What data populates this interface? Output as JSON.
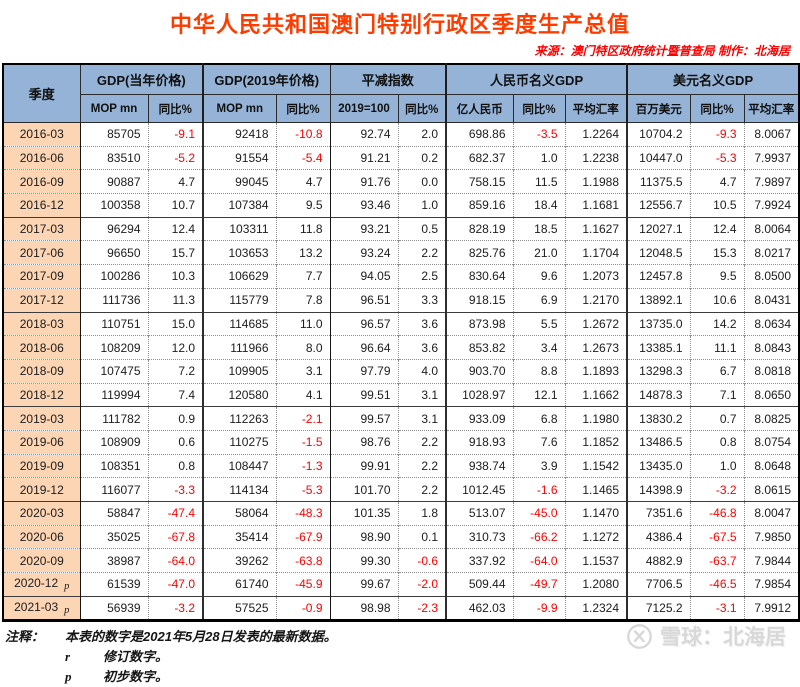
{
  "header": {
    "title": "中华人民共和国澳门特别行政区季度生产总值",
    "source_line": "来源：澳门特区政府统计暨普查局  制作：北海居"
  },
  "chart_data": {
    "type": "table",
    "title": "中华人民共和国澳门特别行政区季度生产总值",
    "quarter_header": "季度",
    "groups": [
      {
        "label": "GDP(当年价格)",
        "sub": [
          "MOP mn",
          "同比%"
        ]
      },
      {
        "label": "GDP(2019年价格)",
        "sub": [
          "MOP mn",
          "同比%"
        ]
      },
      {
        "label": "平减指数",
        "sub": [
          "2019=100",
          "同比%"
        ]
      },
      {
        "label": "人民币名义GDP",
        "sub": [
          "亿人民币",
          "同比%",
          "平均汇率"
        ]
      },
      {
        "label": "美元名义GDP",
        "sub": [
          "百万美元",
          "同比%",
          "平均汇率"
        ]
      }
    ],
    "rows": [
      {
        "quarter": "2016-03",
        "flag": "",
        "values": [
          "85705",
          "-9.1",
          "92418",
          "-10.8",
          "92.74",
          "2.0",
          "698.86",
          "-3.5",
          "1.2264",
          "10704.2",
          "-9.3",
          "8.0067"
        ]
      },
      {
        "quarter": "2016-06",
        "flag": "",
        "values": [
          "83510",
          "-5.2",
          "91554",
          "-5.4",
          "91.21",
          "0.2",
          "682.37",
          "1.0",
          "1.2238",
          "10447.0",
          "-5.3",
          "7.9937"
        ]
      },
      {
        "quarter": "2016-09",
        "flag": "",
        "values": [
          "90887",
          "4.7",
          "99045",
          "4.7",
          "91.76",
          "0.0",
          "758.15",
          "11.5",
          "1.1988",
          "11375.5",
          "4.7",
          "7.9897"
        ]
      },
      {
        "quarter": "2016-12",
        "flag": "",
        "values": [
          "100358",
          "10.7",
          "107384",
          "9.5",
          "93.46",
          "1.0",
          "859.16",
          "18.4",
          "1.1681",
          "12556.7",
          "10.5",
          "7.9924"
        ]
      },
      {
        "quarter": "2017-03",
        "flag": "",
        "values": [
          "96294",
          "12.4",
          "103311",
          "11.8",
          "93.21",
          "0.5",
          "828.19",
          "18.5",
          "1.1627",
          "12027.1",
          "12.4",
          "8.0064"
        ]
      },
      {
        "quarter": "2017-06",
        "flag": "",
        "values": [
          "96650",
          "15.7",
          "103653",
          "13.2",
          "93.24",
          "2.2",
          "825.76",
          "21.0",
          "1.1704",
          "12048.5",
          "15.3",
          "8.0217"
        ]
      },
      {
        "quarter": "2017-09",
        "flag": "",
        "values": [
          "100286",
          "10.3",
          "106629",
          "7.7",
          "94.05",
          "2.5",
          "830.64",
          "9.6",
          "1.2073",
          "12457.8",
          "9.5",
          "8.0500"
        ]
      },
      {
        "quarter": "2017-12",
        "flag": "",
        "values": [
          "111736",
          "11.3",
          "115779",
          "7.8",
          "96.51",
          "3.3",
          "918.15",
          "6.9",
          "1.2170",
          "13892.1",
          "10.6",
          "8.0431"
        ]
      },
      {
        "quarter": "2018-03",
        "flag": "",
        "values": [
          "110751",
          "15.0",
          "114685",
          "11.0",
          "96.57",
          "3.6",
          "873.98",
          "5.5",
          "1.2672",
          "13735.0",
          "14.2",
          "8.0634"
        ]
      },
      {
        "quarter": "2018-06",
        "flag": "",
        "values": [
          "108209",
          "12.0",
          "111966",
          "8.0",
          "96.64",
          "3.6",
          "853.82",
          "3.4",
          "1.2673",
          "13385.1",
          "11.1",
          "8.0843"
        ]
      },
      {
        "quarter": "2018-09",
        "flag": "",
        "values": [
          "107475",
          "7.2",
          "109905",
          "3.1",
          "97.79",
          "4.0",
          "903.70",
          "8.8",
          "1.1893",
          "13298.3",
          "6.7",
          "8.0818"
        ]
      },
      {
        "quarter": "2018-12",
        "flag": "",
        "values": [
          "119994",
          "7.4",
          "120580",
          "4.1",
          "99.51",
          "3.1",
          "1028.97",
          "12.1",
          "1.1662",
          "14878.3",
          "7.1",
          "8.0650"
        ]
      },
      {
        "quarter": "2019-03",
        "flag": "",
        "values": [
          "111782",
          "0.9",
          "112263",
          "-2.1",
          "99.57",
          "3.1",
          "933.09",
          "6.8",
          "1.1980",
          "13830.2",
          "0.7",
          "8.0825"
        ]
      },
      {
        "quarter": "2019-06",
        "flag": "",
        "values": [
          "108909",
          "0.6",
          "110275",
          "-1.5",
          "98.76",
          "2.2",
          "918.93",
          "7.6",
          "1.1852",
          "13486.5",
          "0.8",
          "8.0754"
        ]
      },
      {
        "quarter": "2019-09",
        "flag": "",
        "values": [
          "108351",
          "0.8",
          "108447",
          "-1.3",
          "99.91",
          "2.2",
          "938.74",
          "3.9",
          "1.1542",
          "13435.0",
          "1.0",
          "8.0648"
        ]
      },
      {
        "quarter": "2019-12",
        "flag": "",
        "values": [
          "116077",
          "-3.3",
          "114134",
          "-5.3",
          "101.70",
          "2.2",
          "1012.45",
          "-1.6",
          "1.1465",
          "14398.9",
          "-3.2",
          "8.0615"
        ]
      },
      {
        "quarter": "2020-03",
        "flag": "",
        "values": [
          "58847",
          "-47.4",
          "58064",
          "-48.3",
          "101.35",
          "1.8",
          "513.07",
          "-45.0",
          "1.1470",
          "7351.6",
          "-46.8",
          "8.0047"
        ]
      },
      {
        "quarter": "2020-06",
        "flag": "",
        "values": [
          "35025",
          "-67.8",
          "35414",
          "-67.9",
          "98.90",
          "0.1",
          "310.73",
          "-66.2",
          "1.1272",
          "4386.4",
          "-67.5",
          "7.9850"
        ]
      },
      {
        "quarter": "2020-09",
        "flag": "",
        "values": [
          "38987",
          "-64.0",
          "39262",
          "-63.8",
          "99.30",
          "-0.6",
          "337.92",
          "-64.0",
          "1.1537",
          "4882.9",
          "-63.7",
          "7.9844"
        ]
      },
      {
        "quarter": "2020-12",
        "flag": "p",
        "values": [
          "61539",
          "-47.0",
          "61740",
          "-45.9",
          "99.67",
          "-2.0",
          "509.44",
          "-49.7",
          "1.2080",
          "7706.5",
          "-46.5",
          "7.9854"
        ]
      },
      {
        "quarter": "2021-03",
        "flag": "p",
        "values": [
          "56939",
          "-3.2",
          "57525",
          "-0.9",
          "98.98",
          "-2.3",
          "462.03",
          "-9.9",
          "1.2324",
          "7125.2",
          "-3.1",
          "7.9912"
        ]
      }
    ]
  },
  "notes": {
    "label": "注释：",
    "line1": "本表的数字是2021年5月28日发表的最新数据。",
    "r_key": "r",
    "r_text": "修订数字。",
    "p_key": "p",
    "p_text": "初步数字。"
  },
  "watermark": {
    "logo": "xueqiu-logo",
    "text": "雪球：北海居"
  },
  "colors": {
    "title_accent": "#ff3c00",
    "source_red": "#fe0000",
    "header_bg": "#95b3d7",
    "quarter_col_bg": "#fcd5b4",
    "negative_value": "#fe0000"
  }
}
